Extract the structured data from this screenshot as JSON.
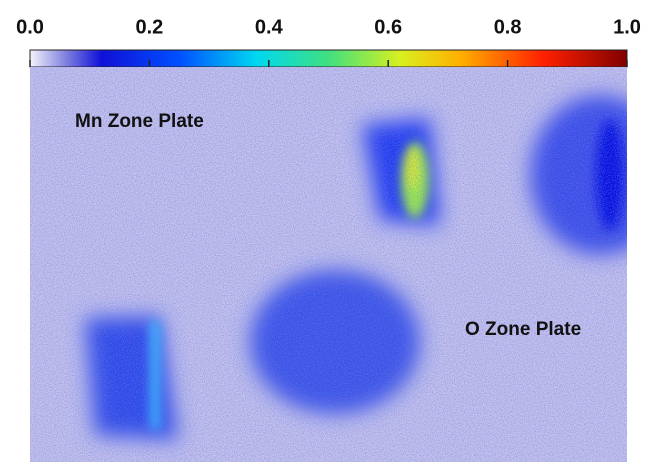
{
  "colorbar": {
    "xlim": [
      0,
      1
    ],
    "ticks": [
      {
        "value": 0,
        "label": "0.0"
      },
      {
        "value": 0.2,
        "label": "0.2"
      },
      {
        "value": 0.4,
        "label": "0.4"
      },
      {
        "value": 0.6,
        "label": "0.6"
      },
      {
        "value": 0.8,
        "label": "0.8"
      },
      {
        "value": 1,
        "label": "1.0"
      }
    ]
  },
  "labels": {
    "mn": "Mn Zone Plate",
    "o": "O Zone Plate"
  }
}
